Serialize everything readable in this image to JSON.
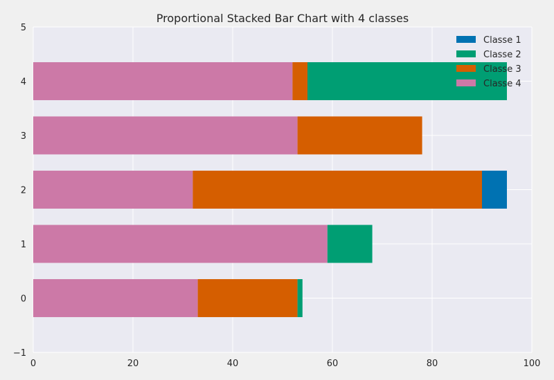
{
  "chart_data": {
    "type": "bar",
    "orientation": "horizontal",
    "stacked": true,
    "title": "Proportional Stacked Bar Chart with 4 classes",
    "xlabel": "",
    "ylabel": "",
    "categories": [
      0,
      1,
      2,
      3,
      4
    ],
    "xlim": [
      0,
      100
    ],
    "ylim": [
      -1,
      5
    ],
    "xticks": [
      0,
      20,
      40,
      60,
      80,
      100
    ],
    "yticks": [
      -1,
      0,
      1,
      2,
      3,
      4,
      5
    ],
    "grid": true,
    "legend_position": "top-right",
    "stack_order": [
      "Classe 4",
      "Classe 3",
      "Classe 2",
      "Classe 1"
    ],
    "series": [
      {
        "name": "Classe 1",
        "color": "#0072b2",
        "values": [
          0,
          0,
          5,
          0,
          0
        ]
      },
      {
        "name": "Classe 2",
        "color": "#009e73",
        "values": [
          1,
          9,
          0,
          0,
          40
        ]
      },
      {
        "name": "Classe 3",
        "color": "#d55e00",
        "values": [
          20,
          0,
          58,
          25,
          3
        ]
      },
      {
        "name": "Classe 4",
        "color": "#cc79a7",
        "values": [
          33,
          59,
          32,
          53,
          52
        ]
      }
    ]
  },
  "colors": {
    "plot_background": "#eaeaf2",
    "figure_background": "#f0f0f0",
    "grid": "#ffffff"
  }
}
